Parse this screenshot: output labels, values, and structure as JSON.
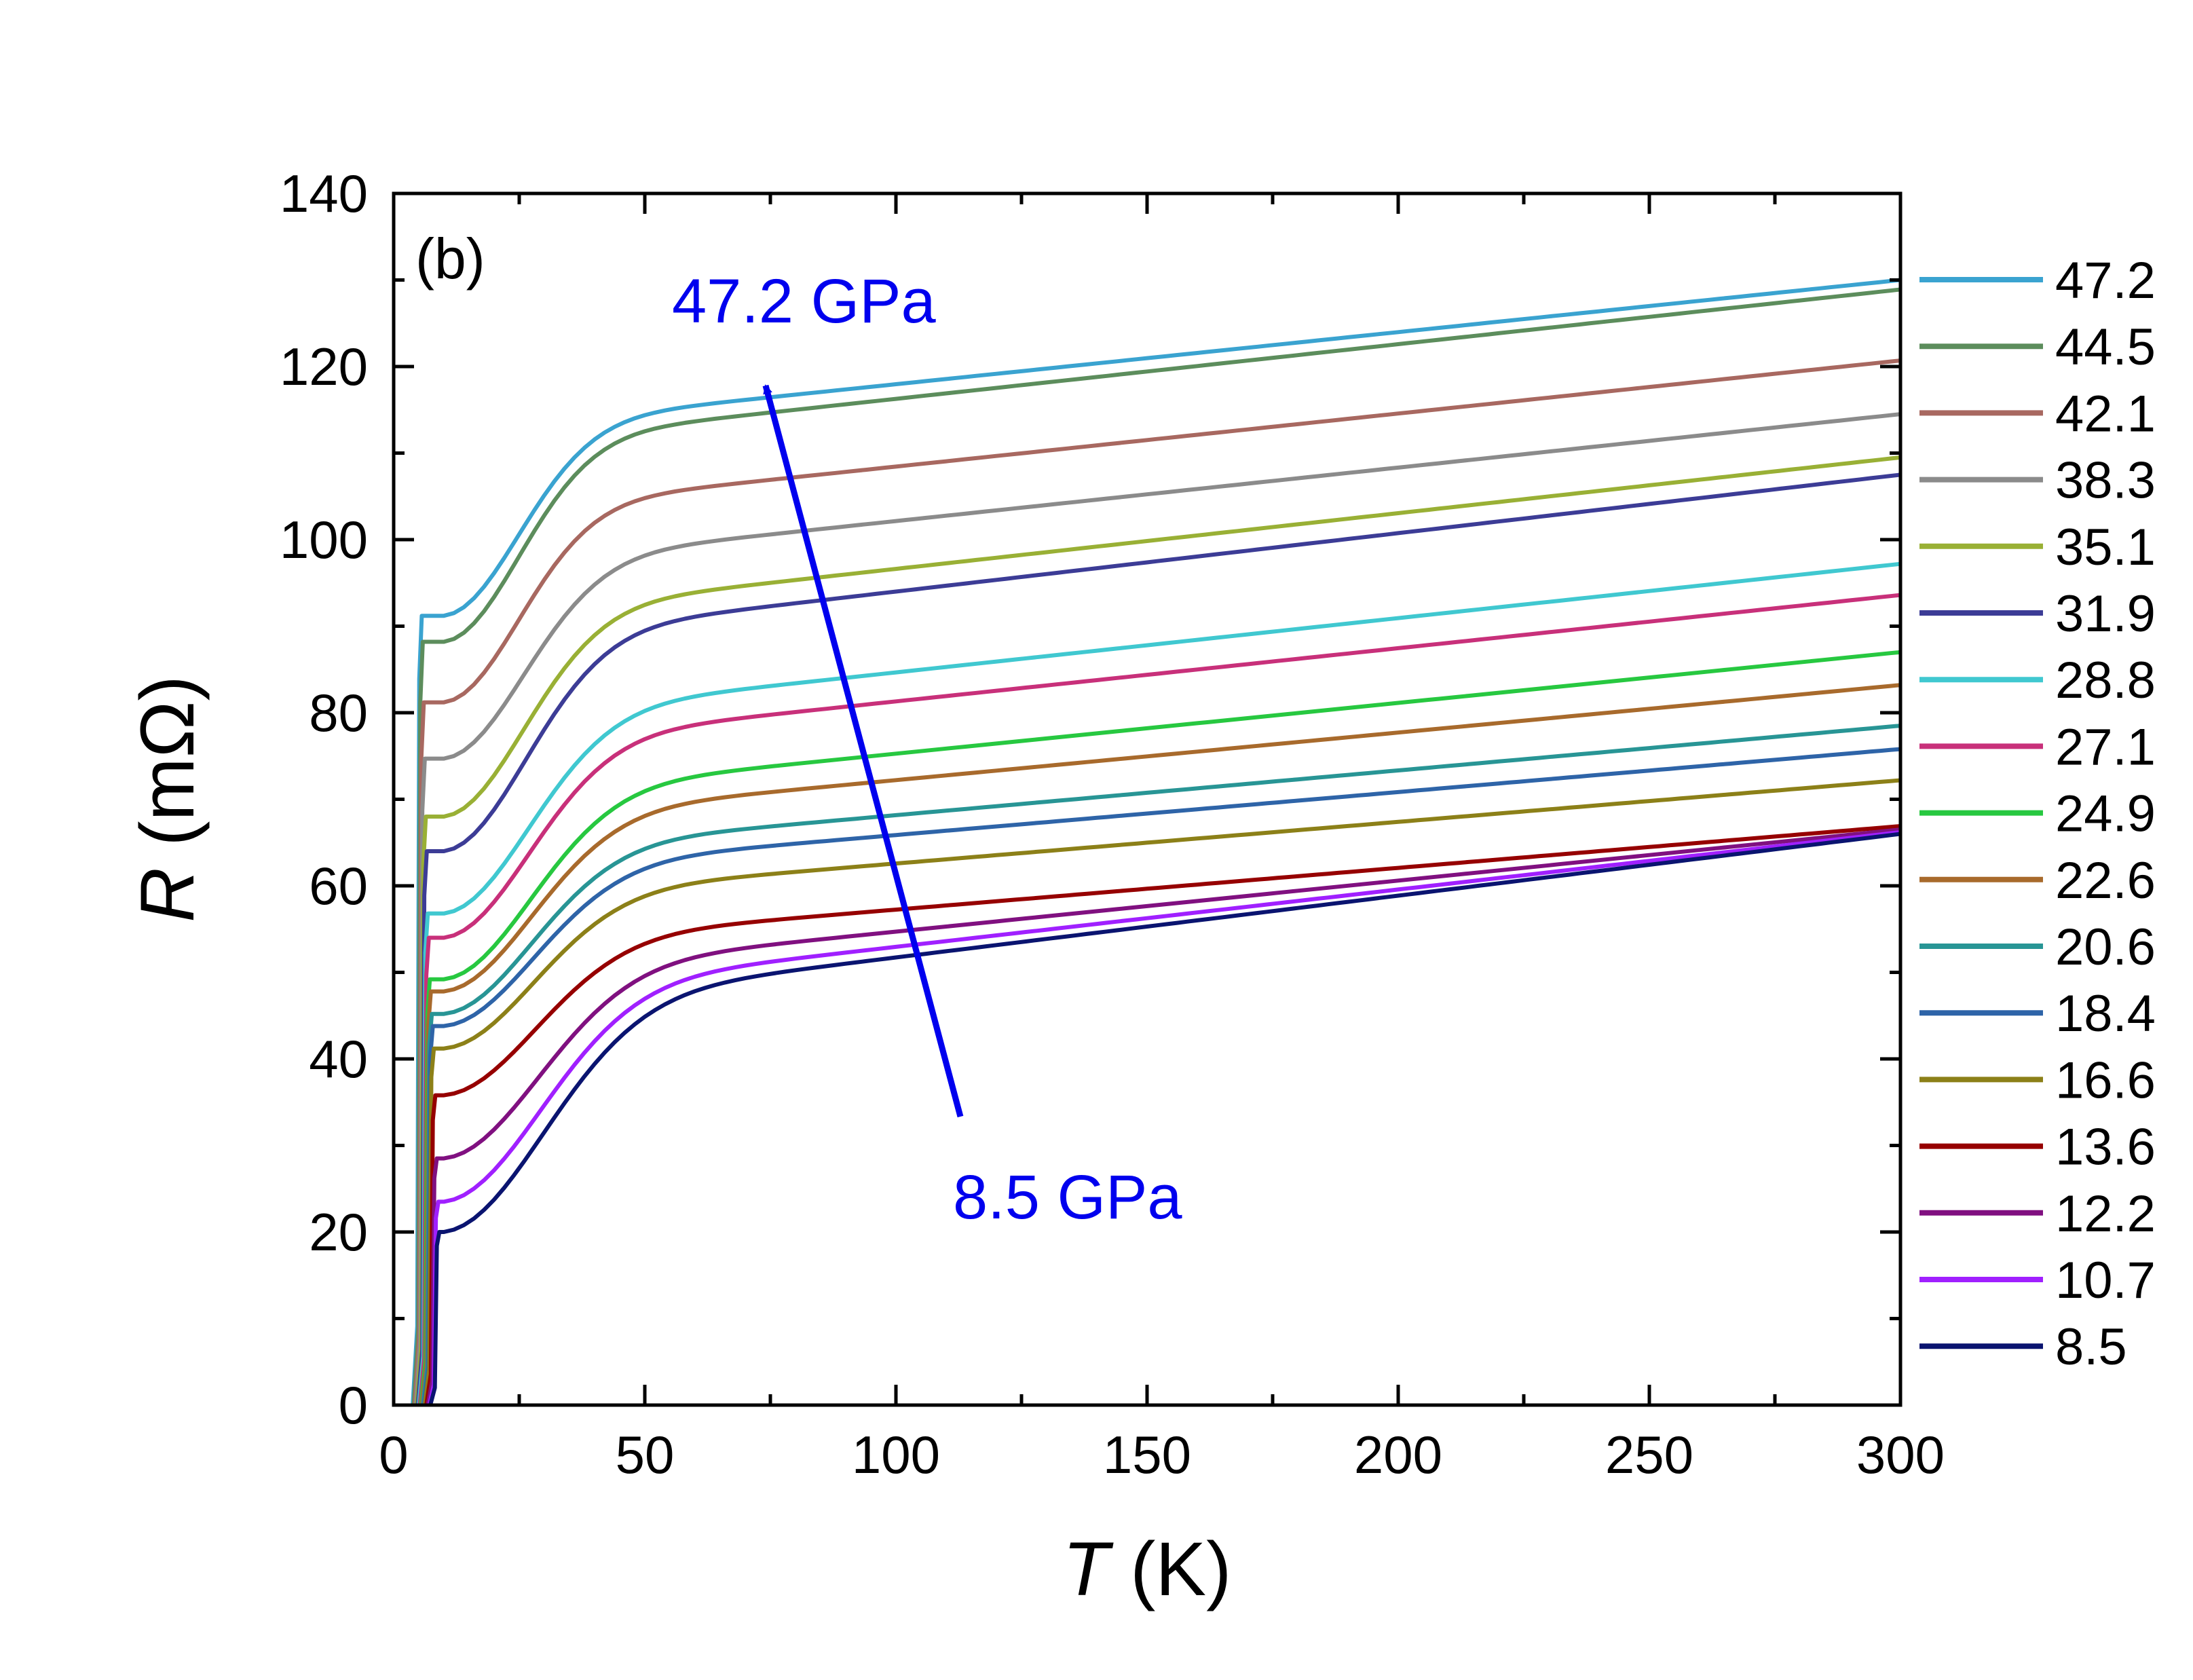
{
  "chart_data": {
    "type": "line",
    "panel_label": "(b)",
    "xlabel_symbol": "T",
    "xlabel_unit": " (K)",
    "ylabel_symbol": "R",
    "ylabel_unit": " (mΩ)",
    "xlim": [
      0,
      300
    ],
    "ylim": [
      0,
      140
    ],
    "xticks": [
      0,
      50,
      100,
      150,
      200,
      250,
      300
    ],
    "yticks": [
      0,
      20,
      40,
      60,
      80,
      100,
      120,
      140
    ],
    "grid": false,
    "legend_position": "right",
    "annotations": {
      "high": "47.2 GPa",
      "low": "8.5 GPa",
      "arrow_color": "#0000ee"
    },
    "series": [
      {
        "name": "47.2",
        "color": "#3aa3d0",
        "tc": 5.0,
        "r0": 91.2,
        "r300": 130.0,
        "w": 0.75
      },
      {
        "name": "44.5",
        "color": "#5c8d5c",
        "tc": 5.2,
        "r0": 88.2,
        "r300": 128.9,
        "w": 0.75
      },
      {
        "name": "42.1",
        "color": "#a86860",
        "tc": 5.4,
        "r0": 81.2,
        "r300": 120.7,
        "w": 0.75
      },
      {
        "name": "38.3",
        "color": "#8b8b8b",
        "tc": 5.6,
        "r0": 74.7,
        "r300": 114.5,
        "w": 0.8
      },
      {
        "name": "35.1",
        "color": "#99b035",
        "tc": 5.8,
        "r0": 68.0,
        "r300": 109.5,
        "w": 0.8
      },
      {
        "name": "31.9",
        "color": "#3c3c96",
        "tc": 6.0,
        "r0": 64.0,
        "r300": 107.5,
        "w": 0.82
      },
      {
        "name": "28.8",
        "color": "#40c8d0",
        "tc": 6.2,
        "r0": 56.8,
        "r300": 97.2,
        "w": 0.85
      },
      {
        "name": "27.1",
        "color": "#c8307a",
        "tc": 6.4,
        "r0": 54.0,
        "r300": 93.6,
        "w": 0.85
      },
      {
        "name": "24.9",
        "color": "#27c840",
        "tc": 6.6,
        "r0": 49.2,
        "r300": 87.0,
        "w": 0.87
      },
      {
        "name": "22.6",
        "color": "#a86a2c",
        "tc": 6.8,
        "r0": 47.8,
        "r300": 83.2,
        "w": 0.88
      },
      {
        "name": "20.6",
        "color": "#289595",
        "tc": 7.0,
        "r0": 45.2,
        "r300": 78.5,
        "w": 0.88
      },
      {
        "name": "18.4",
        "color": "#2e64a8",
        "tc": 7.2,
        "r0": 43.8,
        "r300": 75.8,
        "w": 0.9
      },
      {
        "name": "16.6",
        "color": "#8c8018",
        "tc": 7.4,
        "r0": 41.2,
        "r300": 72.2,
        "w": 0.9
      },
      {
        "name": "13.6",
        "color": "#960000",
        "tc": 7.7,
        "r0": 35.8,
        "r300": 66.9,
        "w": 0.92
      },
      {
        "name": "12.2",
        "color": "#801080",
        "tc": 8.0,
        "r0": 28.5,
        "r300": 66.5,
        "w": 0.95
      },
      {
        "name": "10.7",
        "color": "#a020ff",
        "tc": 8.3,
        "r0": 23.5,
        "r300": 66.2,
        "w": 0.97
      },
      {
        "name": "8.5",
        "color": "#0a1470",
        "tc": 8.5,
        "r0": 20.0,
        "r300": 66.0,
        "w": 1.0
      }
    ]
  }
}
